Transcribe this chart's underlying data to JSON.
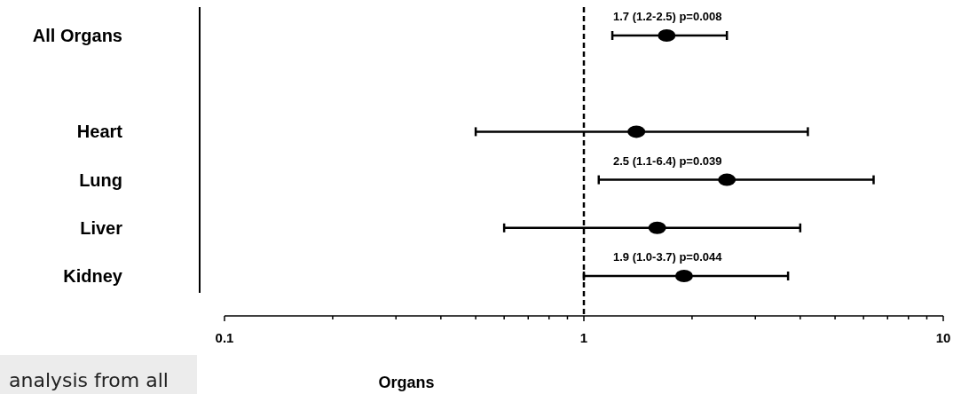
{
  "chart_data": {
    "type": "scatter",
    "orientation": "horizontal",
    "xlabel": "Organs",
    "categories": [
      "All Organs",
      null,
      "Heart",
      "Lung",
      "Liver",
      "Kidney"
    ],
    "values": [
      1.7,
      null,
      1.4,
      2.5,
      1.6,
      1.9
    ],
    "errors": [
      [
        1.2,
        2.5
      ],
      null,
      [
        0.5,
        4.2
      ],
      [
        1.1,
        6.4
      ],
      [
        0.6,
        4.0
      ],
      [
        1.0,
        3.7
      ]
    ],
    "value_labels": [
      "1.7 (1.2-2.5) p=0.008",
      null,
      null,
      "2.5 (1.1-6.4) p=0.039",
      null,
      "1.9 (1.0-3.7) p=0.044"
    ],
    "color": "#000000",
    "marker": "circle",
    "log": "x",
    "xlim": [
      0.1,
      10
    ],
    "xticks": [
      0.1,
      {
        "value": 0.2,
        "label": null
      },
      {
        "value": 0.3,
        "label": null
      },
      {
        "value": 0.4,
        "label": null
      },
      {
        "value": 0.5,
        "label": null
      },
      {
        "value": 0.6,
        "label": null
      },
      {
        "value": 0.7,
        "label": null
      },
      {
        "value": 0.8,
        "label": null
      },
      {
        "value": 0.9,
        "label": null
      },
      1,
      {
        "value": 2,
        "label": null
      },
      {
        "value": 3,
        "label": null
      },
      {
        "value": 4,
        "label": null
      },
      {
        "value": 5,
        "label": null
      },
      {
        "value": 6,
        "label": null
      },
      {
        "value": 7,
        "label": null
      },
      {
        "value": 8,
        "label": null
      },
      {
        "value": 9,
        "label": null
      },
      10
    ],
    "ref_lines": [
      {
        "axis": "x",
        "value": 1,
        "line_style": "dashed"
      }
    ],
    "annotations": [
      "analysis from all"
    ]
  }
}
